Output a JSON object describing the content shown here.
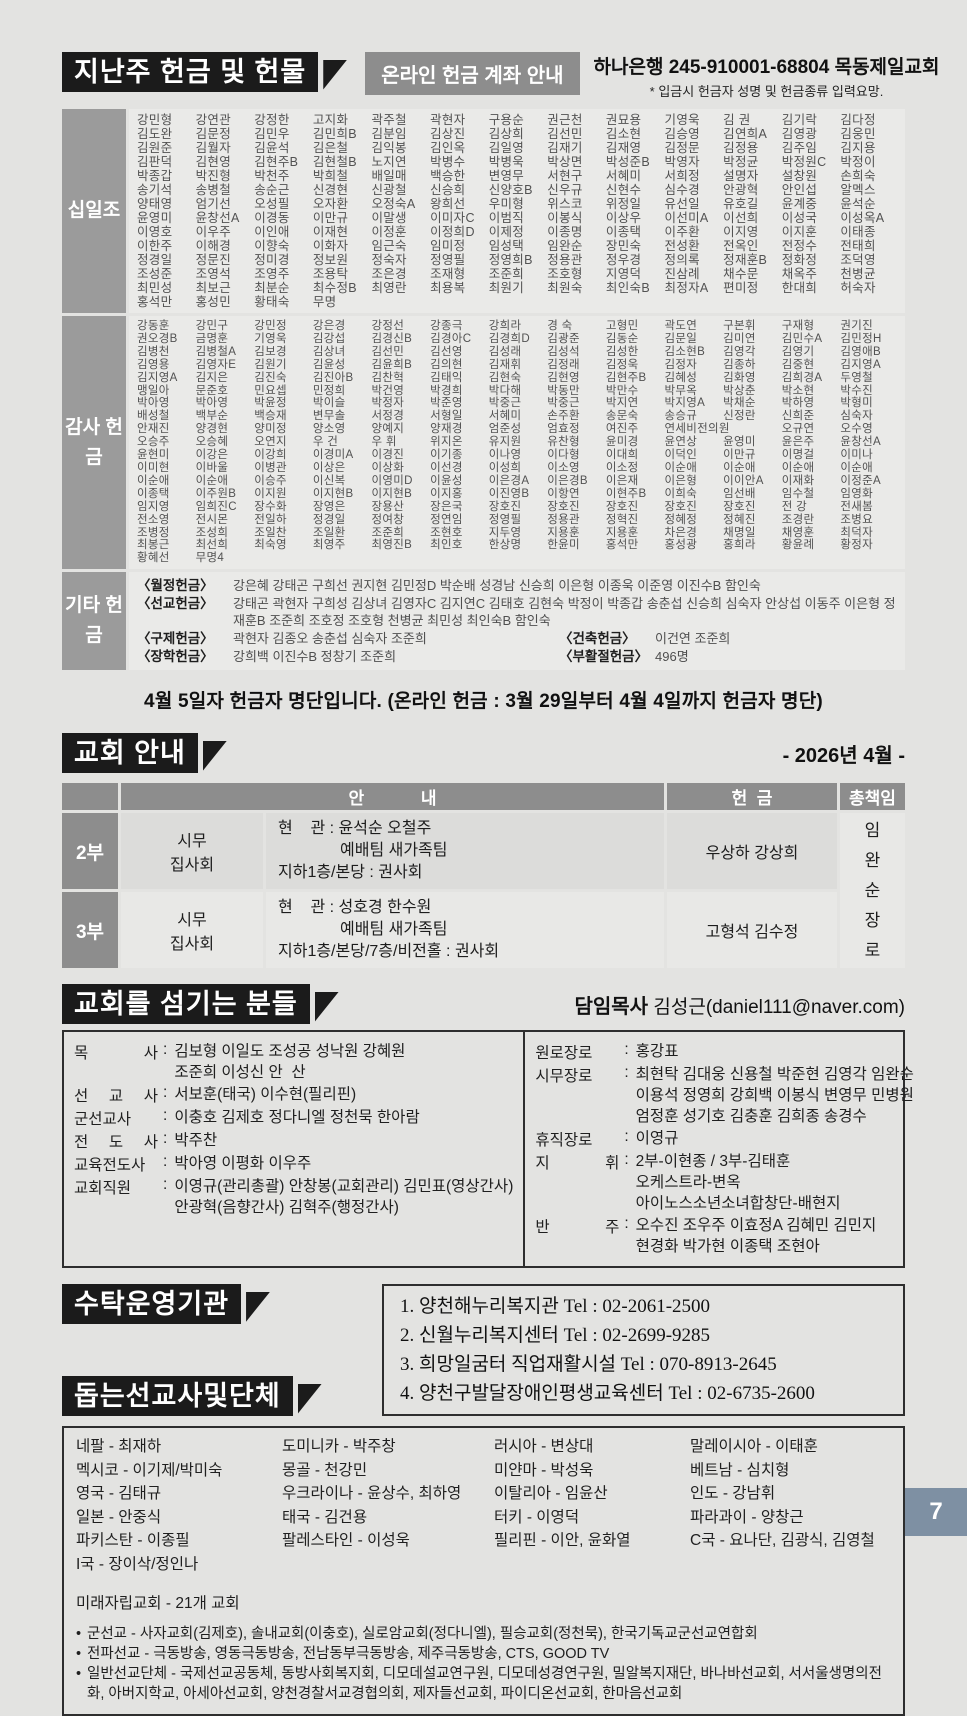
{
  "page": {
    "number": "7"
  },
  "header": {
    "title": "지난주 헌금 및 헌물",
    "online_box": "온라인 헌금 계좌 안내",
    "bank_line": "하나은행 245-910001-68804 목동제일교회",
    "bank_note": "* 입금시 헌금자 성명 및 헌금종류 입력요망."
  },
  "offerings": {
    "tithe": {
      "label": "십일조",
      "rows": [
        [
          "강민형",
          "강연관",
          "강정한",
          "고지화",
          "곽주철",
          "곽현자",
          "구용순",
          "권근천",
          "권묘용",
          "기영욱",
          "김  권",
          "김기락",
          "김다정"
        ],
        [
          "김도완",
          "김문정",
          "김민우",
          "김민희B",
          "김분임",
          "김상진",
          "김상희",
          "김선민",
          "김소현",
          "김승영",
          "김연희A",
          "김영광",
          "김웅민"
        ],
        [
          "김원준",
          "김월자",
          "김윤석",
          "김은철",
          "김익봉",
          "김인옥",
          "김일영",
          "김재기",
          "김재영",
          "김정문",
          "김정용",
          "김주임",
          "김지용"
        ],
        [
          "김판덕",
          "김현영",
          "김현주B",
          "김현철B",
          "노지연",
          "박병수",
          "박병욱",
          "박상면",
          "박성준B",
          "박영자",
          "박정균",
          "박정원C",
          "박정이"
        ],
        [
          "박종갑",
          "박진형",
          "박천주",
          "박희철",
          "배일매",
          "백승한",
          "변영무",
          "서현구",
          "서혜미",
          "서희정",
          "설명자",
          "설창원",
          "손희숙"
        ],
        [
          "송기석",
          "송병철",
          "송순근",
          "신경현",
          "신광철",
          "신승희",
          "신양호B",
          "신우규",
          "신현수",
          "심수경",
          "안광혁",
          "안인섭",
          "알멕스"
        ],
        [
          "양태영",
          "엄기선",
          "오성필",
          "오자환",
          "오정숙A",
          "왕희선",
          "우미형",
          "위스코",
          "위정일",
          "유선일",
          "유호길",
          "윤계중",
          "윤석순"
        ],
        [
          "윤영미",
          "윤창선A",
          "이경동",
          "이만규",
          "이말생",
          "이미자C",
          "이범직",
          "이봉식",
          "이상우",
          "이선미A",
          "이선희",
          "이성국",
          "이성옥A"
        ],
        [
          "이영호",
          "이우주",
          "이인애",
          "이재현",
          "이정훈",
          "이정희D",
          "이제정",
          "이종명",
          "이종택",
          "이주환",
          "이지영",
          "이지훈",
          "이태종"
        ],
        [
          "이한주",
          "이해경",
          "이향숙",
          "이화자",
          "임근숙",
          "임미정",
          "임성택",
          "임완순",
          "장민숙",
          "전성환",
          "전옥인",
          "전정수",
          "전태희"
        ],
        [
          "정경일",
          "정문진",
          "정미경",
          "정보원",
          "정숙자",
          "정영필",
          "정영희B",
          "정용관",
          "정우경",
          "정의록",
          "정재훈B",
          "정화정",
          "조덕영"
        ],
        [
          "조성준",
          "조영석",
          "조영주",
          "조용탁",
          "조은경",
          "조재형",
          "조준희",
          "조호형",
          "지영덕",
          "진삼례",
          "채수문",
          "채옥주",
          "천병균"
        ],
        [
          "최민성",
          "최보근",
          "최분순",
          "최수정B",
          "최영란",
          "최용복",
          "최원기",
          "최원숙",
          "최인숙B",
          "최정자A",
          "편미정",
          "한대희",
          "허숙자"
        ],
        [
          "홍석만",
          "홍성민",
          "황태숙",
          "무명"
        ]
      ]
    },
    "thanks": {
      "label": "감사 헌금",
      "rows": [
        [
          "강동훈",
          "강민구",
          "강민정",
          "강은경",
          "강정선",
          "강종극",
          "강희라",
          "경  숙",
          "고형민",
          "곽도연",
          "구본휘",
          "구재형",
          "권기진"
        ],
        [
          "권오경B",
          "금명훈",
          "기영욱",
          "김강섭",
          "김경신B",
          "김경아C",
          "김경희D",
          "김광준",
          "김동순",
          "김문일",
          "김미연",
          "김민수A",
          "김민정H"
        ],
        [
          "김병천",
          "김병철A",
          "김보경",
          "김상녀",
          "김선민",
          "김선영",
          "김성래",
          "김성석",
          "김성한",
          "김소현B",
          "김영각",
          "김영기",
          "김영애B"
        ],
        [
          "김영용",
          "김영자E",
          "김원기",
          "김윤성",
          "김윤희B",
          "김의현",
          "김재휘",
          "김정래",
          "김정욱",
          "김정자",
          "김종하",
          "김중현",
          "김지영A"
        ],
        [
          "김지영A",
          "김지은",
          "김진숙",
          "김진아B",
          "김찬혁",
          "김태익",
          "김현숙",
          "김현영",
          "김현주B",
          "김혜성",
          "김화영",
          "김희경A",
          "두영철"
        ],
        [
          "맹일아",
          "문준호",
          "민요셉",
          "민정희",
          "박건영",
          "박경희",
          "박다해",
          "박동만",
          "박만수",
          "박무옥",
          "박상춘",
          "박소현",
          "박수진"
        ],
        [
          "박아영",
          "박아영",
          "박윤정",
          "박이슬",
          "박정자",
          "박준영",
          "박중근",
          "박중근",
          "박지연",
          "박지영A",
          "박채순",
          "박하영",
          "박형미"
        ],
        [
          "배성철",
          "백부순",
          "백승재",
          "변무솔",
          "서정경",
          "서형일",
          "서혜미",
          "손주환",
          "송문숙",
          "송승규",
          "신정란",
          "신희준",
          "심숙자"
        ],
        [
          "안재진",
          "양경현",
          "양미정",
          "양소영",
          "양예지",
          "양재경",
          "엄준성",
          "엄효정",
          "여진주",
          "연세비전의원",
          "오규연",
          "오수영"
        ],
        [
          "오승주",
          "오승혜",
          "오연지",
          "우  건",
          "우  휘",
          "위지온",
          "유지원",
          "유찬형",
          "윤미경",
          "윤연상",
          "윤영미",
          "윤은주",
          "윤창선A"
        ],
        [
          "윤현미",
          "이강은",
          "이강희",
          "이경미A",
          "이경진",
          "이기종",
          "이나영",
          "이다형",
          "이대희",
          "이덕인",
          "이만규",
          "이명걸",
          "이미나"
        ],
        [
          "이미현",
          "이바울",
          "이병관",
          "이상은",
          "이상화",
          "이선경",
          "이성희",
          "이소영",
          "이소정",
          "이순애",
          "이순애",
          "이순애",
          "이순애"
        ],
        [
          "이순애",
          "이순애",
          "이승주",
          "이신복",
          "이영미D",
          "이윤성",
          "이은경A",
          "이은경B",
          "이은재",
          "이은형",
          "이이안A",
          "이재화",
          "이정준A"
        ],
        [
          "이종택",
          "이주원B",
          "이지원",
          "이지현B",
          "이지현B",
          "이지홍",
          "이진영B",
          "이항연",
          "이현주B",
          "이희숙",
          "임선배",
          "임수철",
          "임영화"
        ],
        [
          "임지영",
          "임희진C",
          "장수화",
          "장영은",
          "장용산",
          "장은국",
          "장호진",
          "장호진",
          "장호진",
          "장호진",
          "장호진",
          "전  강",
          "전새봄"
        ],
        [
          "전소영",
          "전시몬",
          "전일하",
          "정경일",
          "정여창",
          "정연임",
          "정영필",
          "정용관",
          "정혁진",
          "정혜정",
          "정혜진",
          "조경란",
          "조병요"
        ],
        [
          "조병정",
          "조성희",
          "조일찬",
          "조일환",
          "조준희",
          "조현호",
          "지두영",
          "지용훈",
          "지용훈",
          "차은경",
          "채명일",
          "채영훈",
          "최덕자"
        ],
        [
          "최봉근",
          "최선희",
          "최숙영",
          "최영주",
          "최영진B",
          "최인호",
          "한상명",
          "한윤미",
          "홍석만",
          "홍성광",
          "홍희라",
          "황윤례",
          "황정자"
        ],
        [
          "황혜선",
          "무명4"
        ]
      ]
    },
    "etc": {
      "label": "기타 헌금",
      "rows": [
        {
          "label": "〈월정헌금〉",
          "text": "강은혜  강태곤  구희선  권지현  김민정D  박순배  성경남  신승희  이은형  이종욱  이준영  이진수B  함인숙"
        },
        {
          "label": "〈선교헌금〉",
          "text": "강태곤  곽현자  구희성  김상녀  김영자C  김지연C  김태호  김현숙  박정이  박종갑  송춘섭  신승희  심숙자  안상섭  이동주  이은형  정재훈B  조준희  조호정  조호형  천병균  최민성  최인숙B  함인숙"
        },
        {
          "label": "〈구제헌금〉",
          "text": "곽현자  김종오  송춘섭  심숙자  조준희",
          "label2": "〈건축헌금〉",
          "text2": "이건연  조준희"
        },
        {
          "label": "〈장학헌금〉",
          "text": "강희백  이진수B  정창기  조준희",
          "label2": "〈부활절헌금〉",
          "text2": "496명"
        }
      ]
    }
  },
  "notice": "4월 5일자 헌금자 명단입니다. (온라인 헌금 : 3월 29일부터 4월 4일까지 헌금자 명단)",
  "church": {
    "title": "교회  안내",
    "month": "- 2026년 4월 -",
    "headers": {
      "an": "안            내",
      "offering": "헌  금",
      "chief": "총책임"
    },
    "chief": "임완순장로",
    "rows": [
      {
        "part": "2부",
        "group": "시무\n집사회",
        "lines": [
          "현    관 : 윤석순 오철주",
          "예배팀 새가족팀",
          "지하1층/본당 : 권사회"
        ],
        "offering": "우상하 강상희"
      },
      {
        "part": "3부",
        "group": "시무\n집사회",
        "lines": [
          "현    관 : 성호경 한수원",
          "예배팀 새가족팀",
          "지하1층/본당/7층/비전홀 : 권사회"
        ],
        "offering": "고형석 김수정"
      }
    ]
  },
  "servants": {
    "title": "교회를 섬기는 분들",
    "pastor_label": "담임목사",
    "pastor_value": "김성근(daniel111@naver.com)",
    "left": [
      {
        "role": "목  사",
        "lines": [
          "김보형 이일도 조성공 성낙원 강혜원",
          "조준희 이성신 안  산"
        ]
      },
      {
        "role": "선 교 사",
        "lines": [
          "서보훈(태국) 이수현(필리핀)"
        ]
      },
      {
        "role": "군선교사",
        "lines": [
          "이충호 김제호 정다니엘 정천묵 한아람"
        ]
      },
      {
        "role": "전 도 사",
        "lines": [
          "박주찬"
        ]
      },
      {
        "role": "교육전도사",
        "lines": [
          "박아영 이평화 이우주"
        ]
      },
      {
        "role": "교회직원",
        "lines": [
          "이영규(관리총괄) 안창봉(교회관리) 김민표(영상간사)",
          "안광혁(음향간사) 김혁주(행정간사)"
        ]
      }
    ],
    "right": [
      {
        "role": "원로장로",
        "lines": [
          "홍강표"
        ]
      },
      {
        "role": "시무장로",
        "lines": [
          "최현탁 김대웅 신용철 박준현 김영각 임완순",
          "이용석 정영희 강희백 이봉식 변영무 민병원",
          "엄정훈 성기호 김충훈 김희종 송경수"
        ]
      },
      {
        "role": "휴직장로",
        "lines": [
          "이영규"
        ]
      },
      {
        "role": "지  휘",
        "lines": [
          "2부-이현종 / 3부-김태훈",
          "오케스트라-변옥",
          "아이노스소년소녀합창단-배현지"
        ]
      },
      {
        "role": "반  주",
        "lines": [
          "오수진 조우주 이효정A 김혜민 김민지",
          "현경화 박가현 이종택 조현아"
        ]
      }
    ]
  },
  "trustee": {
    "title": "수탁운영기관",
    "items": [
      "1. 양천해누리복지관  Tel : 02-2061-2500",
      "2. 신월누리복지센터  Tel : 02-2699-9285",
      "3. 희망일굼터 직업재활시설  Tel : 070-8913-2645",
      "4. 양천구발달장애인평생교육센터  Tel : 02-6735-2600"
    ]
  },
  "missions": {
    "title": "돕는선교사및단체",
    "grid": [
      [
        "네팔 - 최재하",
        "도미니카 - 박주창",
        "러시아 - 변상대",
        "말레이시아 - 이태훈"
      ],
      [
        "멕시코 - 이기제/박미숙",
        "몽골 - 천강민",
        "미얀마 - 박성욱",
        "베트남 - 심치형"
      ],
      [
        "영국 - 김태규",
        "우크라이나 - 윤상수, 최하영",
        "이탈리아 - 임윤산",
        "인도 - 강남휘"
      ],
      [
        "일본 - 안중식",
        "태국 - 김건용",
        "터키 - 이영덕",
        "파라과이 - 양창근"
      ],
      [
        "파키스탄 - 이종필",
        "팔레스타인 - 이성욱",
        "필리핀 - 이안, 윤화열",
        "C국 - 요나단, 김광식, 김영철"
      ]
    ],
    "extra": "I국 - 장이삭/정인나",
    "future": "미래자립교회 - 21개 교회",
    "bullets": [
      "군선교 - 사자교회(김제호), 솔내교회(이충호), 실로암교회(정다니엘), 필승교회(정천묵), 한국기독교군선교연합회",
      "전파선교 - 극동방송, 영동극동방송, 전남동부극동방송, 제주극동방송, CTS, GOOD TV",
      "일반선교단체 - 국제선교공동체, 동방사회복지회, 디모데설교연구원, 디모데성경연구원, 밀알복지재단, 바나바선교회, 서서울생명의전화, 아버지학교, 아세아선교회, 양천경찰서교경협의회, 제자들선교회, 파이디온선교회, 한마음선교회"
    ]
  },
  "colors": {
    "title_black": "#1b1b1b",
    "label_gray": "#9b9b9b",
    "panel_gray": "#eaeae8",
    "page_bg": "#e3e3e1",
    "page_tab_blue": "#7e90a3"
  }
}
